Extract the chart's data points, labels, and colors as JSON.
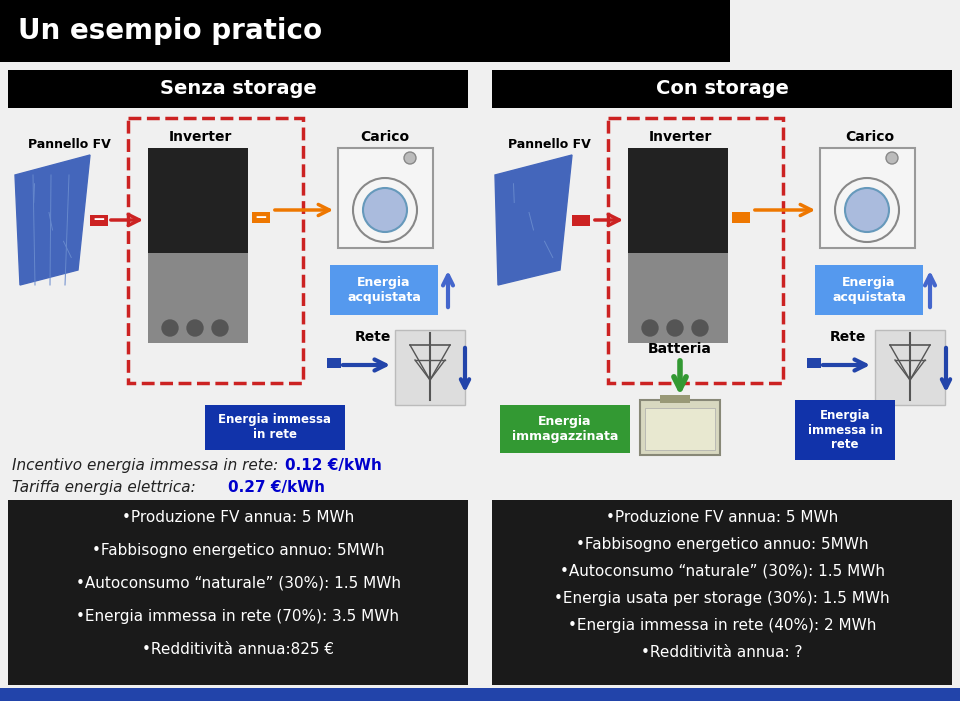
{
  "title": "Un esempio pratico",
  "title_color": "#ffffff",
  "title_bg": "#000000",
  "bg_color": "#ffffff",
  "left_panel_title": "Senza storage",
  "right_panel_title": "Con storage",
  "panel_title_bg": "#000000",
  "panel_title_color": "#ffffff",
  "incentivo_label": "Incentivo energia immessa in rete: ",
  "incentivo_value": "0.12 €/kWh",
  "tariffa_label": "Tariffa energia elettrica: ",
  "tariffa_value": "0.27 €/kWh",
  "label_color": "#1a1a1a",
  "value_color": "#0000cc",
  "left_box_lines": [
    "•Produzione FV annua: 5 MWh",
    "•Fabbisogno energetico annuo: 5MWh",
    "•Autoconsumo “naturale” (30%): 1.5 MWh",
    "•Energia immessa in rete (70%): 3.5 MWh",
    "•Redditività annua:825 €"
  ],
  "right_box_lines": [
    "•Produzione FV annua: 5 MWh",
    "•Fabbisogno energetico annuo: 5MWh",
    "•Autoconsumo “naturale” (30%): 1.5 MWh",
    "•Energia usata per storage (30%): 1.5 MWh",
    "•Energia immessa in rete (40%): 2 MWh",
    "•Redditività annua: ?"
  ],
  "box_bg": "#1a1a1a",
  "box_text_color": "#ffffff",
  "energia_acquistata_color": "#5599ee",
  "energia_immessa_color": "#1133aa",
  "energia_immagazzinata_color": "#339933",
  "pannello_label": "Pannello FV",
  "inverter_label": "Inverter",
  "carico_label": "Carico",
  "rete_label": "Rete",
  "batteria_label": "Batteria",
  "energia_acquistata_label": "Energia\nacquistata",
  "energia_immessa_label": "Energia immessa\nin rete",
  "energia_immessa_label2": "Energia\nimmessa in\nrete",
  "energia_immagazzinata_label": "Energia\nimmagazzinata",
  "diagram_bg": "#f0f0f0"
}
